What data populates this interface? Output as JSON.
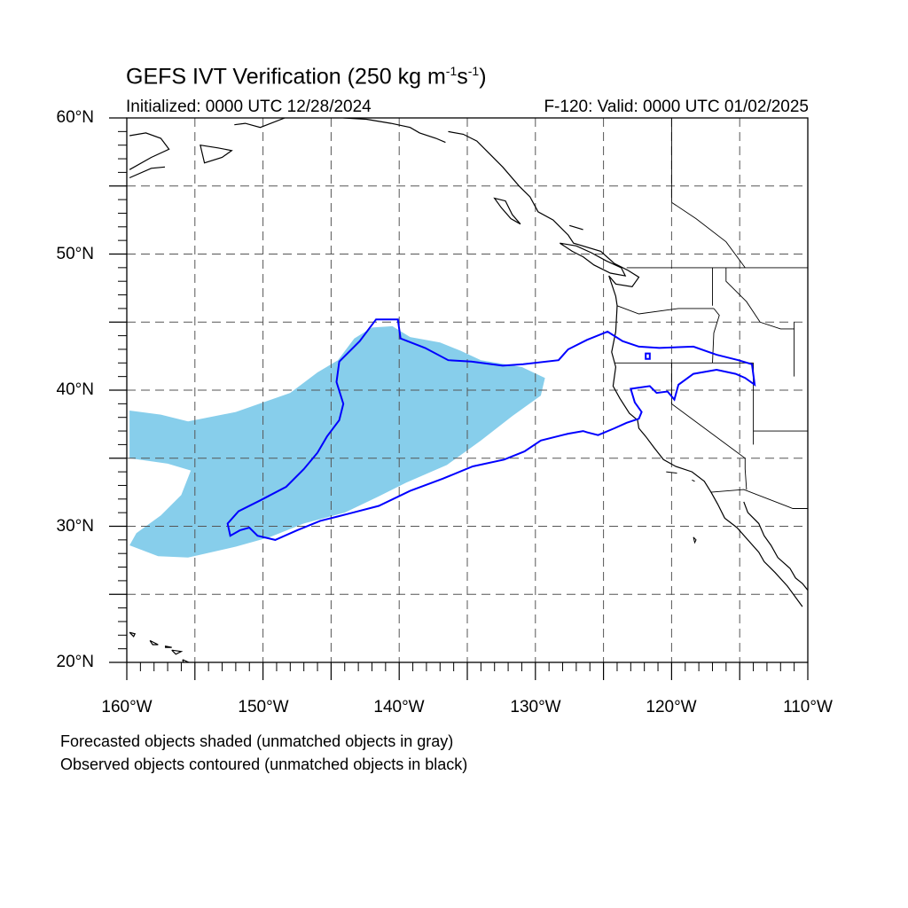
{
  "title": {
    "main_prefix": "GEFS IVT Verification (250 kg m",
    "exp1": "-1",
    "mid": "s",
    "exp2": "-1",
    "suffix": ")"
  },
  "subtitle": {
    "initialized": "Initialized: 0000 UTC 12/28/2024",
    "valid": "F-120: Valid: 0000 UTC 01/02/2025"
  },
  "axes": {
    "lat_labels": [
      "60°N",
      "50°N",
      "40°N",
      "30°N",
      "20°N"
    ],
    "lon_labels": [
      "160°W",
      "150°W",
      "140°W",
      "130°W",
      "120°W",
      "110°W"
    ],
    "lat_range": [
      20,
      60
    ],
    "lon_range": [
      -160,
      -110
    ],
    "grid": "dashed, every 5 degrees"
  },
  "notes": {
    "line1": "Forecasted objects shaded (unmatched objects in gray)",
    "line2": "Observed objects contoured (unmatched objects in black)"
  },
  "colors": {
    "forecast_fill": "#87ceeb",
    "observed_contour": "#0000ff",
    "coastline": "#000000",
    "grid": "#555555"
  },
  "objects": {
    "forecast_object": [
      [
        -159.8,
        38.5
      ],
      [
        -157.5,
        38.2
      ],
      [
        -155.5,
        37.7
      ],
      [
        -152,
        38.4
      ],
      [
        -148,
        39.8
      ],
      [
        -146,
        41.3
      ],
      [
        -144.5,
        42.2
      ],
      [
        -143.3,
        43.8
      ],
      [
        -142,
        44.6
      ],
      [
        -140.5,
        44.7
      ],
      [
        -139.2,
        43.9
      ],
      [
        -137,
        43.5
      ],
      [
        -135.5,
        42.9
      ],
      [
        -134,
        42.2
      ],
      [
        -131,
        41.7
      ],
      [
        -129.3,
        40.9
      ],
      [
        -129.6,
        39.6
      ],
      [
        -131.7,
        38.1
      ],
      [
        -134,
        36.3
      ],
      [
        -136.5,
        34.5
      ],
      [
        -139.5,
        33.2
      ],
      [
        -141.5,
        32.2
      ],
      [
        -144,
        31
      ],
      [
        -147,
        30.2
      ],
      [
        -149.5,
        29.2
      ],
      [
        -152,
        28.5
      ],
      [
        -155.5,
        27.7
      ],
      [
        -157.7,
        27.8
      ],
      [
        -159.8,
        28.6
      ],
      [
        -159.3,
        29.5
      ],
      [
        -157.5,
        30.8
      ],
      [
        -156,
        32.3
      ],
      [
        -155.3,
        34.1
      ],
      [
        -157,
        34.6
      ],
      [
        -159.8,
        35
      ]
    ],
    "observed_object": [
      [
        -152.6,
        30.2
      ],
      [
        -151.8,
        31.1
      ],
      [
        -150.2,
        31.9
      ],
      [
        -148.3,
        32.9
      ],
      [
        -147,
        34.2
      ],
      [
        -146,
        35.4
      ],
      [
        -145.3,
        36.6
      ],
      [
        -144.4,
        37.8
      ],
      [
        -144.1,
        39
      ],
      [
        -144.6,
        40.6
      ],
      [
        -144.4,
        42.1
      ],
      [
        -142.9,
        43.6
      ],
      [
        -141.7,
        45.2
      ],
      [
        -140.1,
        45.2
      ],
      [
        -139.9,
        43.8
      ],
      [
        -138.1,
        43.1
      ],
      [
        -136.4,
        42.2
      ],
      [
        -134.7,
        42.1
      ],
      [
        -132.4,
        41.8
      ],
      [
        -130.9,
        41.9
      ],
      [
        -128.3,
        42.2
      ],
      [
        -127.6,
        43
      ],
      [
        -126.2,
        43.7
      ],
      [
        -124.7,
        44.3
      ],
      [
        -123.6,
        43.6
      ],
      [
        -122.4,
        43.2
      ],
      [
        -120.9,
        43.1
      ],
      [
        -118.4,
        43.2
      ],
      [
        -116.7,
        42.6
      ],
      [
        -115.1,
        42.2
      ],
      [
        -114.1,
        41.9
      ],
      [
        -113.9,
        40.4
      ],
      [
        -114.6,
        40.9
      ],
      [
        -115.3,
        41.2
      ],
      [
        -116.7,
        41.5
      ],
      [
        -118.4,
        41.2
      ],
      [
        -119.5,
        40.4
      ],
      [
        -119.8,
        39.3
      ],
      [
        -120.3,
        39.9
      ],
      [
        -121.1,
        39.8
      ],
      [
        -121.6,
        40.3
      ],
      [
        -123,
        40.1
      ],
      [
        -122.7,
        39.1
      ],
      [
        -122.2,
        38.4
      ],
      [
        -122.4,
        37.9
      ],
      [
        -123.3,
        37.6
      ],
      [
        -124.2,
        37.2
      ],
      [
        -125.4,
        36.7
      ],
      [
        -126.2,
        36.9
      ],
      [
        -126.5,
        37
      ],
      [
        -127.6,
        36.8
      ],
      [
        -129.6,
        36.3
      ],
      [
        -130.8,
        35.5
      ],
      [
        -132.3,
        34.9
      ],
      [
        -134.6,
        34.4
      ],
      [
        -136.8,
        33.5
      ],
      [
        -139.2,
        32.6
      ],
      [
        -141.5,
        31.5
      ],
      [
        -143.8,
        30.9
      ],
      [
        -145.8,
        30.4
      ],
      [
        -147.5,
        29.7
      ],
      [
        -149.1,
        29
      ],
      [
        -150.4,
        29.3
      ],
      [
        -151,
        29.9
      ],
      [
        -151.7,
        29.7
      ],
      [
        -152.4,
        29.3
      ]
    ],
    "observed_object_island": [
      [
        -121.9,
        42.7
      ],
      [
        -121.6,
        42.7
      ],
      [
        -121.6,
        42.3
      ],
      [
        -121.9,
        42.3
      ]
    ]
  },
  "basemap": {
    "west_coast": [
      [
        -136.4,
        59
      ],
      [
        -135.3,
        58.8
      ],
      [
        -134.3,
        58.3
      ],
      [
        -133.3,
        57.3
      ],
      [
        -132.4,
        56.4
      ],
      [
        -131.2,
        55
      ],
      [
        -130.4,
        54.2
      ],
      [
        -129.8,
        53.1
      ],
      [
        -128.7,
        52.5
      ],
      [
        -127.6,
        51.4
      ],
      [
        -127.2,
        50.8
      ],
      [
        -125.2,
        50.2
      ],
      [
        -124.2,
        49.3
      ],
      [
        -123.2,
        48.8
      ],
      [
        -122.4,
        48.3
      ],
      [
        -122.9,
        47.6
      ],
      [
        -124.1,
        47.8
      ],
      [
        -124.6,
        48.4
      ],
      [
        -124.1,
        46.9
      ],
      [
        -124,
        46.2
      ],
      [
        -124.1,
        44.3
      ],
      [
        -124.4,
        42.8
      ],
      [
        -124.1,
        41.7
      ],
      [
        -124.3,
        40.3
      ],
      [
        -123.8,
        39.4
      ],
      [
        -123.1,
        38.3
      ],
      [
        -122.5,
        37.8
      ],
      [
        -122.4,
        37.2
      ],
      [
        -121.9,
        36.6
      ],
      [
        -121.3,
        35.8
      ],
      [
        -120.6,
        34.9
      ],
      [
        -119.7,
        34.4
      ],
      [
        -118.5,
        34.0
      ],
      [
        -117.6,
        33.3
      ],
      [
        -117.1,
        32.5
      ],
      [
        -116.6,
        31.6
      ],
      [
        -116.1,
        30.6
      ],
      [
        -115.2,
        29.9
      ],
      [
        -114.4,
        29
      ],
      [
        -113.6,
        28.1
      ],
      [
        -113.2,
        27.4
      ],
      [
        -112.4,
        26.6
      ],
      [
        -111.5,
        25.6
      ],
      [
        -110.4,
        24.1
      ]
    ],
    "gulf_coast": [
      [
        -114.7,
        31.8
      ],
      [
        -114.4,
        31
      ],
      [
        -113.6,
        30.2
      ],
      [
        -113.2,
        29.3
      ],
      [
        -112.7,
        28.6
      ],
      [
        -112.2,
        27.7
      ],
      [
        -111.3,
        26.9
      ],
      [
        -110.9,
        26.2
      ],
      [
        -110.4,
        25.8
      ],
      [
        -110,
        25.3
      ]
    ],
    "vancouver_island": [
      [
        -128.2,
        50.8
      ],
      [
        -127.3,
        50.2
      ],
      [
        -126.5,
        49.8
      ],
      [
        -125.7,
        49.2
      ],
      [
        -124.5,
        48.6
      ],
      [
        -123.4,
        48.4
      ],
      [
        -123.7,
        49
      ],
      [
        -124.8,
        49.5
      ],
      [
        -125.9,
        50.1
      ],
      [
        -127,
        50.6
      ],
      [
        -128.2,
        50.8
      ]
    ],
    "haida_gwaii": [
      [
        -133,
        54.1
      ],
      [
        -132.2,
        53.9
      ],
      [
        -131.7,
        52.9
      ],
      [
        -131.1,
        52.2
      ],
      [
        -131.8,
        52.6
      ],
      [
        -132.5,
        53.4
      ],
      [
        -133,
        54.1
      ]
    ],
    "alaska_west": [
      [
        -159.8,
        58.7
      ],
      [
        -158.6,
        58.9
      ],
      [
        -157.5,
        58.5
      ],
      [
        -156.9,
        57.7
      ],
      [
        -158.2,
        57.1
      ],
      [
        -159.8,
        56.2
      ]
    ],
    "alaska_pen": [
      [
        -159.8,
        55.6
      ],
      [
        -158.2,
        56.3
      ],
      [
        -157.2,
        56.4
      ]
    ],
    "kodiak": [
      [
        -154.6,
        58
      ],
      [
        -153.3,
        57.8
      ],
      [
        -152.3,
        57.6
      ],
      [
        -153,
        57.1
      ],
      [
        -154.3,
        56.7
      ],
      [
        -154.6,
        58
      ]
    ],
    "gulf_alaska": [
      [
        -152.1,
        59.5
      ],
      [
        -151.3,
        59.6
      ],
      [
        -150.2,
        59.3
      ],
      [
        -148.4,
        60
      ]
    ],
    "alaska_se_coast": [
      [
        -144.1,
        60
      ],
      [
        -142.4,
        59.9
      ],
      [
        -140.6,
        59.6
      ],
      [
        -139.2,
        59.3
      ],
      [
        -138.5,
        58.9
      ],
      [
        -137.3,
        58.5
      ],
      [
        -136.6,
        58.2
      ]
    ],
    "hawaii_islands": [
      [
        [
          -159.8,
          22.2
        ],
        [
          -159.4,
          22.1
        ],
        [
          -159.5,
          21.9
        ],
        [
          -159.8,
          22.2
        ]
      ],
      [
        [
          -158.3,
          21.6
        ],
        [
          -157.7,
          21.3
        ],
        [
          -158.1,
          21.3
        ],
        [
          -158.3,
          21.6
        ]
      ],
      [
        [
          -157.2,
          21.2
        ],
        [
          -156.7,
          21.1
        ],
        [
          -157.2,
          21.1
        ]
      ],
      [
        [
          -156.7,
          20.9
        ],
        [
          -156,
          20.8
        ],
        [
          -156.4,
          20.6
        ],
        [
          -156.7,
          20.9
        ]
      ],
      [
        [
          -155.9,
          20.2
        ],
        [
          -155,
          19.8
        ],
        [
          -155.6,
          19
        ],
        [
          -155.9,
          20.2
        ]
      ]
    ],
    "baja_islands": [
      [
        [
          -118.4,
          29.2
        ],
        [
          -118.2,
          29.0
        ],
        [
          -118.3,
          28.8
        ],
        [
          -118.4,
          29.2
        ]
      ]
    ],
    "channel_islands": [
      [
        [
          -120.4,
          34.0
        ],
        [
          -119.6,
          33.9
        ]
      ],
      [
        [
          -118.5,
          33.4
        ],
        [
          -118.3,
          33.3
        ]
      ]
    ],
    "canada_us_border": [
      [
        -123.3,
        49
      ],
      [
        -110,
        49
      ]
    ],
    "or_border": [
      [
        -124.2,
        42
      ],
      [
        -117,
        42
      ],
      [
        -114,
        42
      ]
    ],
    "wa_or_border": [
      [
        -124,
        46.2
      ],
      [
        -122.4,
        45.6
      ],
      [
        -119.5,
        46
      ],
      [
        -116.9,
        46
      ]
    ],
    "wa_id_border": [
      [
        -117.0,
        49
      ],
      [
        -117.0,
        46.2
      ]
    ],
    "or_id_border": [
      [
        -116.9,
        46
      ],
      [
        -116.5,
        45.5
      ],
      [
        -116.9,
        44.2
      ],
      [
        -117,
        42
      ]
    ],
    "ca_nv_border": [
      [
        -120,
        42
      ],
      [
        -120,
        39
      ],
      [
        -114.6,
        35
      ],
      [
        -114.6,
        34.2
      ],
      [
        -114.5,
        32.7
      ]
    ],
    "nv_ut_border": [
      [
        -114,
        42
      ],
      [
        -114,
        37
      ],
      [
        -114,
        36
      ]
    ],
    "id_mt_border": [
      [
        -116.0,
        49
      ],
      [
        -116.0,
        48
      ],
      [
        -114.5,
        46.5
      ],
      [
        -113.5,
        45
      ],
      [
        -112,
        44.5
      ],
      [
        -111,
        44.5
      ]
    ],
    "mx_us_border": [
      [
        -117.1,
        32.5
      ],
      [
        -114.7,
        32.7
      ],
      [
        -111.1,
        31.3
      ],
      [
        -110,
        31.3
      ]
    ],
    "wy_border": [
      [
        -111,
        45
      ],
      [
        -111,
        41
      ]
    ],
    "ut_az_border": [
      [
        -114,
        37
      ],
      [
        -110,
        37
      ]
    ],
    "bc_ab_border": [
      [
        -120,
        60
      ],
      [
        -120,
        53.8
      ],
      [
        -118.2,
        52.6
      ],
      [
        -116,
        50.9
      ],
      [
        -114.6,
        49
      ]
    ],
    "bc_coast_inlets": [
      [
        -127.5,
        52.1
      ],
      [
        -126.5,
        51.8
      ]
    ]
  }
}
